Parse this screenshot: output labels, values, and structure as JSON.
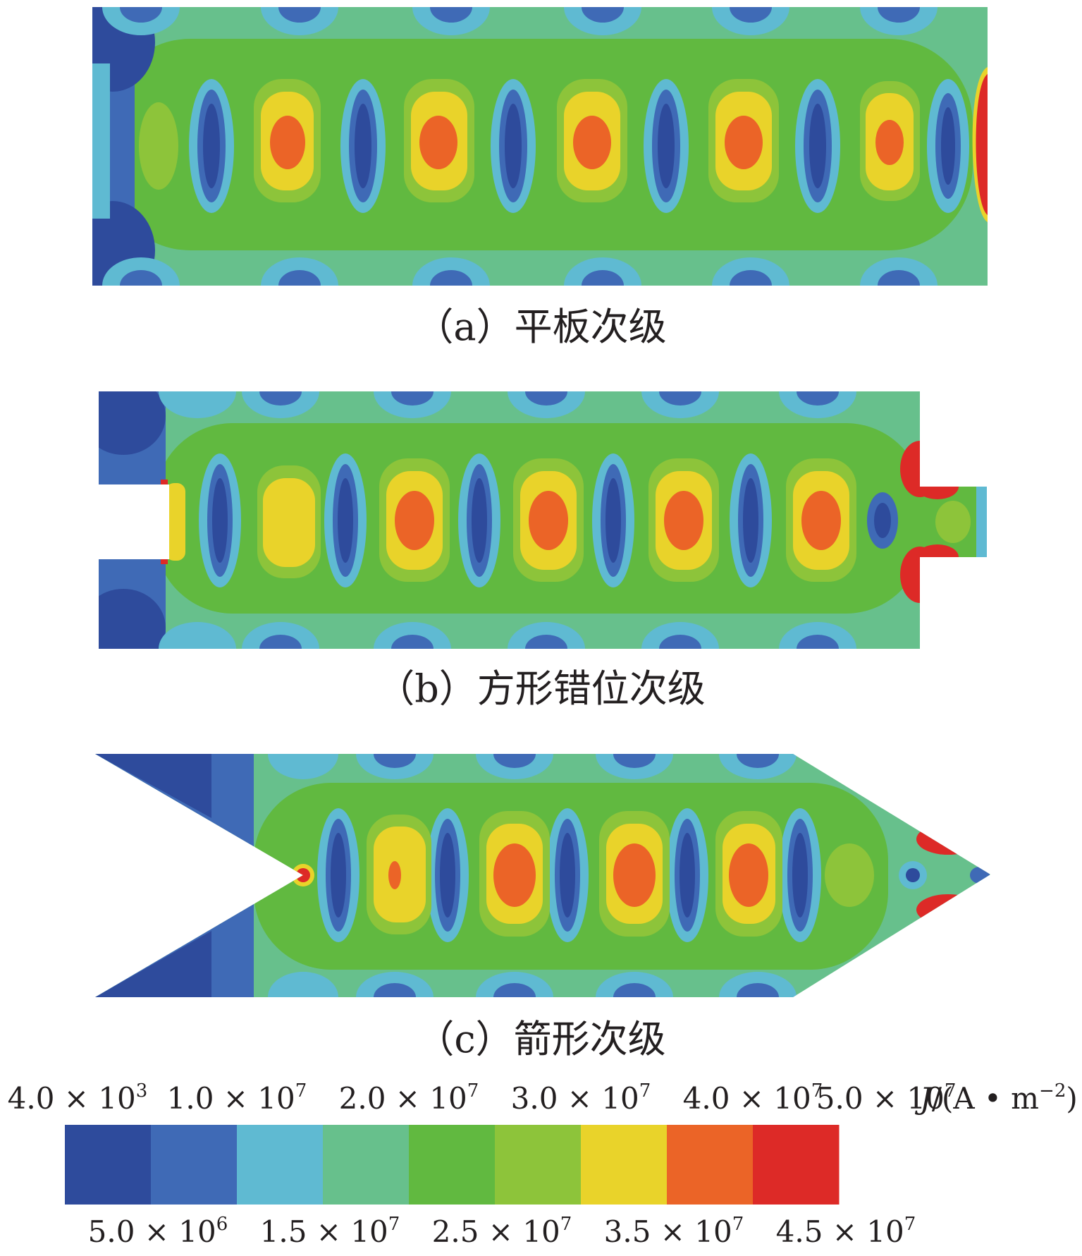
{
  "panels": [
    {
      "id": "a",
      "caption": "（a）平板次级"
    },
    {
      "id": "b",
      "caption": "（b）方形错位次级"
    },
    {
      "id": "c",
      "caption": "（c）箭形次级"
    }
  ],
  "colorbar": {
    "colors": [
      "#2e4b9c",
      "#3f6ab6",
      "#5fbad2",
      "#67c08c",
      "#61b940",
      "#8dc43a",
      "#e9d32a",
      "#eb6427",
      "#dd2a27"
    ],
    "top_labels": [
      {
        "mant": "4.0 × 10",
        "exp": "3"
      },
      {
        "mant": "1.0 × 10",
        "exp": "7"
      },
      {
        "mant": "2.0 × 10",
        "exp": "7"
      },
      {
        "mant": "3.0 × 10",
        "exp": "7"
      },
      {
        "mant": "4.0 × 10",
        "exp": "7"
      },
      {
        "mant": "5.0 × 10",
        "exp": "7"
      }
    ],
    "bottom_labels": [
      {
        "mant": "5.0 × 10",
        "exp": "6"
      },
      {
        "mant": "1.5 × 10",
        "exp": "7"
      },
      {
        "mant": "2.5 × 10",
        "exp": "7"
      },
      {
        "mant": "3.5 × 10",
        "exp": "7"
      },
      {
        "mant": "4.5 × 10",
        "exp": "7"
      }
    ],
    "unit": {
      "symbol": "J",
      "rest": "/(A • m",
      "exp": "−2",
      "close": ")"
    }
  }
}
